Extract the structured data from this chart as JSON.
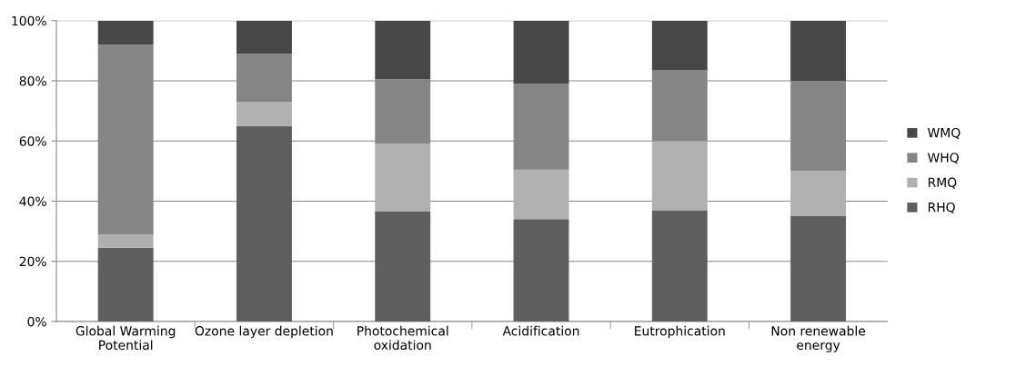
{
  "chart_data": {
    "type": "bar",
    "stacked": true,
    "categories": [
      "Global Warming\nPotential",
      "Ozone layer depletion",
      "Photochemical\noxidation",
      "Acidification",
      "Eutrophication",
      "Non renewable\nenergy"
    ],
    "series": [
      {
        "name": "RHQ",
        "color": "#5f5f5f",
        "values": [
          24.5,
          65,
          36.5,
          34,
          37,
          35
        ]
      },
      {
        "name": "RMQ",
        "color": "#b0b0b0",
        "values": [
          4.5,
          8,
          22.5,
          16.5,
          23,
          15
        ]
      },
      {
        "name": "WHQ",
        "color": "#858585",
        "values": [
          63,
          16,
          21.5,
          28.5,
          23.5,
          30
        ]
      },
      {
        "name": "WMQ",
        "color": "#484848",
        "values": [
          8,
          11,
          19.5,
          21,
          16.5,
          20
        ]
      }
    ],
    "ylim": [
      0,
      100
    ],
    "yticks": [
      {
        "value": 0,
        "label": "0%"
      },
      {
        "value": 20,
        "label": "20%"
      },
      {
        "value": 40,
        "label": "40%"
      },
      {
        "value": 60,
        "label": "60%"
      },
      {
        "value": 80,
        "label": "80%"
      },
      {
        "value": 100,
        "label": "100%"
      }
    ],
    "grid": "y",
    "legend": "right"
  }
}
